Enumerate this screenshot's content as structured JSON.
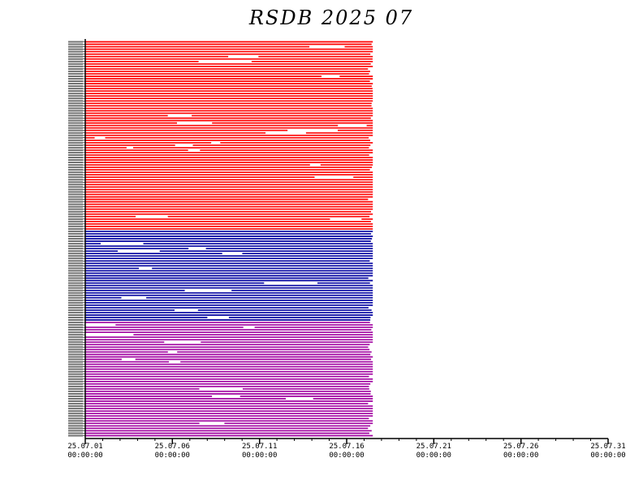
{
  "chart_data": {
    "type": "timeline",
    "title": "RSDB  2025  07",
    "x_start": "2025-07-01T00:00:00",
    "x_end": "2025-07-31T00:00:00",
    "data_end": "2025-07-17T12:00:00",
    "major_ticks": [
      {
        "date": "2025-07-01",
        "label1": "25.07.01",
        "label2": "00:00:00"
      },
      {
        "date": "2025-07-06",
        "label1": "25.07.06",
        "label2": "00:00:00"
      },
      {
        "date": "2025-07-11",
        "label1": "25.07.11",
        "label2": "00:00:00"
      },
      {
        "date": "2025-07-16",
        "label1": "25.07.16",
        "label2": "00:00:00"
      },
      {
        "date": "2025-07-21",
        "label1": "25.07.21",
        "label2": "00:00:00"
      },
      {
        "date": "2025-07-26",
        "label1": "25.07.26",
        "label2": "00:00:00"
      },
      {
        "date": "2025-07-31",
        "label1": "25.07.31",
        "label2": "00:00:00"
      }
    ],
    "colors": {
      "group1": "#ff0000",
      "group2": "#0000a0",
      "group3": "#a000a0"
    },
    "groups": [
      {
        "color_key": "group1",
        "rows": 77
      },
      {
        "color_key": "group2",
        "rows": 37
      },
      {
        "color_key": "group3",
        "rows": 47
      }
    ]
  }
}
